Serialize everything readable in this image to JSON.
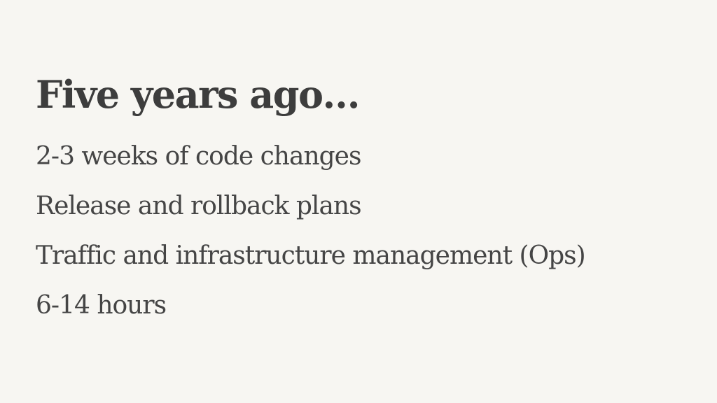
{
  "slide": {
    "title": "Five years ago…",
    "bullets": [
      "2-3 weeks of code changes",
      "Release and rollback plans",
      "Traffic and infrastructure management (Ops)",
      "6-14 hours"
    ]
  }
}
